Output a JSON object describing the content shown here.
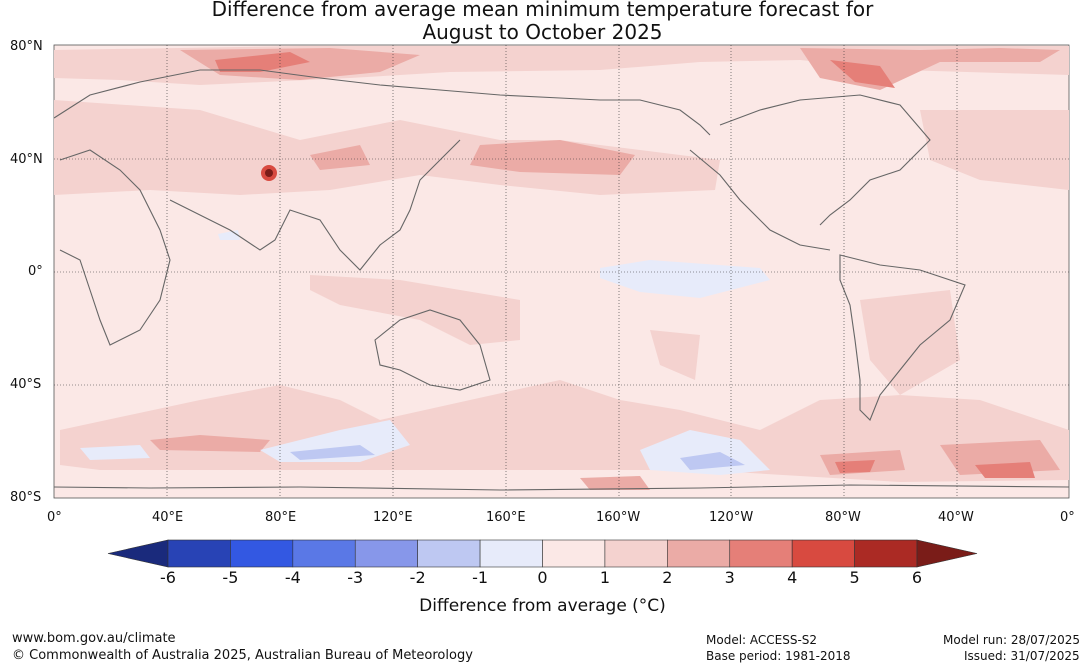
{
  "title_line1": "Difference from average mean minimum temperature forecast for",
  "title_line2": "August to October 2025",
  "lat_labels": [
    "80°N",
    "40°N",
    "0°",
    "40°S",
    "80°S"
  ],
  "lon_labels": [
    "0°",
    "40°E",
    "80°E",
    "120°E",
    "160°E",
    "160°W",
    "120°W",
    "80°W",
    "40°W",
    "0°"
  ],
  "colorbar": {
    "ticks": [
      "-6",
      "-5",
      "-4",
      "-3",
      "-2",
      "-1",
      "0",
      "1",
      "2",
      "3",
      "4",
      "5",
      "6"
    ],
    "colors": [
      "#2843b5",
      "#3358e2",
      "#5a78e6",
      "#8797ea",
      "#bec8f2",
      "#e7ebfa",
      "#fbe8e6",
      "#f4d2cf",
      "#ebaba6",
      "#e57f78",
      "#d84a40",
      "#ab2a24"
    ],
    "under_color": "#1a2a7c",
    "over_color": "#7a1c18",
    "label": "Difference from average (°C)"
  },
  "footer": {
    "url": "www.bom.gov.au/climate",
    "copyright": "© Commonwealth of Australia 2025, Australian Bureau of Meteorology",
    "model": "Model: ACCESS-S2",
    "base_period": "Base period: 1981-2018",
    "model_run": "Model run: 28/07/2025",
    "issued": "Issued: 31/07/2025"
  }
}
